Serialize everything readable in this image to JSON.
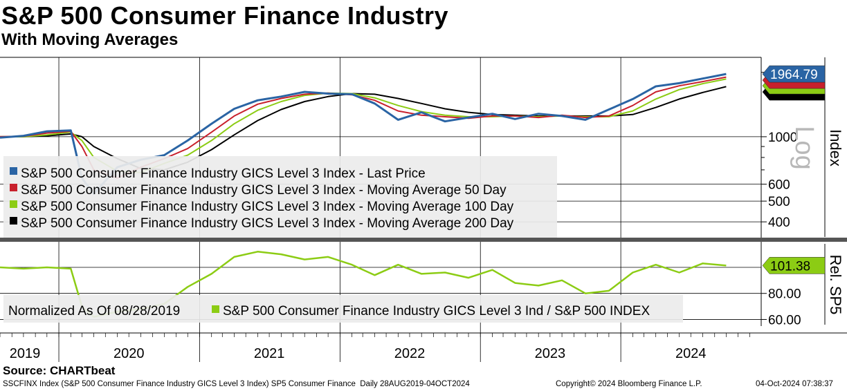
{
  "header": {
    "title": "S&P 500 Consumer Finance Industry",
    "subtitle": "With Moving Averages",
    "source": "Source: CHARTbeat"
  },
  "footer": {
    "left": "SSCFINX Index (S&P 500 Consumer Finance Industry GICS Level 3 Index) SP5 Consumer Finance  Daily 28AUG2019-04OCT2024",
    "center": "Copyright© 2024 Bloomberg Finance L.P.",
    "right": "04-Oct-2024 07:38:37"
  },
  "colors": {
    "last_price": "#2a64a4",
    "ma50": "#c8202c",
    "ma100": "#8ccc14",
    "ma200": "#000000",
    "relative": "#8ccc14",
    "legend_bg": "#ececec",
    "grid": "#000000"
  },
  "chart_data": [
    {
      "type": "line",
      "panel": "price",
      "scale": "log",
      "ylabel": "Index",
      "scale_label": "Log",
      "y_ticks": [
        400,
        500,
        600,
        1000
      ],
      "ylim": [
        340,
        2350
      ],
      "x_labels": [
        "2019",
        "2020",
        "2021",
        "2022",
        "2023",
        "2024"
      ],
      "x": [
        "2019-08",
        "2019-10",
        "2019-12",
        "2020-02",
        "2020-03",
        "2020-04",
        "2020-06",
        "2020-08",
        "2020-10",
        "2020-12",
        "2021-02",
        "2021-04",
        "2021-06",
        "2021-08",
        "2021-10",
        "2021-12",
        "2022-02",
        "2022-04",
        "2022-06",
        "2022-08",
        "2022-10",
        "2022-12",
        "2023-02",
        "2023-04",
        "2023-06",
        "2023-08",
        "2023-10",
        "2023-12",
        "2024-02",
        "2024-04",
        "2024-06",
        "2024-08",
        "2024-10"
      ],
      "series": [
        {
          "name": "S&P 500 Consumer Finance Industry GICS Level 3 Index - Last Price",
          "values": [
            990,
            1010,
            1060,
            1070,
            640,
            540,
            720,
            780,
            820,
            960,
            1150,
            1350,
            1480,
            1540,
            1620,
            1590,
            1580,
            1430,
            1200,
            1300,
            1180,
            1230,
            1280,
            1210,
            1280,
            1250,
            1200,
            1340,
            1500,
            1720,
            1780,
            1870,
            1964.79
          ]
        },
        {
          "name": "S&P 500 Consumer Finance Industry GICS Level 3 Index - Moving Average 50 Day",
          "values": [
            1000,
            1005,
            1040,
            1060,
            900,
            700,
            640,
            720,
            790,
            880,
            1050,
            1250,
            1420,
            1510,
            1580,
            1600,
            1570,
            1480,
            1320,
            1260,
            1240,
            1220,
            1250,
            1250,
            1230,
            1260,
            1230,
            1250,
            1400,
            1620,
            1730,
            1810,
            1900
          ]
        },
        {
          "name": "S&P 500 Consumer Finance Industry GICS Level 3 Index - Moving Average 100 Day",
          "values": [
            1000,
            1000,
            1020,
            1050,
            960,
            800,
            690,
            680,
            750,
            820,
            960,
            1150,
            1330,
            1460,
            1560,
            1600,
            1590,
            1520,
            1400,
            1310,
            1260,
            1240,
            1240,
            1250,
            1240,
            1250,
            1240,
            1240,
            1320,
            1500,
            1660,
            1770,
            1860
          ]
        },
        {
          "name": "S&P 500 Consumer Finance Industry GICS Level 3 Index - Moving Average 200 Day",
          "values": [
            1000,
            1000,
            1010,
            1030,
            1000,
            900,
            790,
            710,
            700,
            760,
            870,
            1020,
            1190,
            1340,
            1460,
            1540,
            1590,
            1580,
            1510,
            1430,
            1350,
            1300,
            1270,
            1260,
            1250,
            1250,
            1250,
            1250,
            1270,
            1370,
            1500,
            1610,
            1715.05
          ]
        }
      ],
      "last_value_label": "1964.79"
    },
    {
      "type": "line",
      "panel": "relative",
      "ylabel": "Rel. SP5",
      "y_ticks": [
        60,
        80
      ],
      "y_tick_labels": [
        "60.00",
        "80.00"
      ],
      "ylim": [
        56,
        118
      ],
      "legend_left": "Normalized As Of 08/28/2019",
      "x": [
        "2019-08",
        "2019-10",
        "2019-12",
        "2020-02",
        "2020-03",
        "2020-04",
        "2020-06",
        "2020-08",
        "2020-10",
        "2020-12",
        "2021-02",
        "2021-04",
        "2021-06",
        "2021-08",
        "2021-10",
        "2021-12",
        "2022-02",
        "2022-04",
        "2022-06",
        "2022-08",
        "2022-10",
        "2022-12",
        "2023-02",
        "2023-04",
        "2023-06",
        "2023-08",
        "2023-10",
        "2023-12",
        "2024-02",
        "2024-04",
        "2024-06",
        "2024-08",
        "2024-10"
      ],
      "series": [
        {
          "name": "S&P 500 Consumer Finance Industry GICS Level 3 Ind / S&P 500 INDEX",
          "values": [
            100,
            99,
            100,
            99,
            70,
            62,
            66,
            68,
            72,
            85,
            95,
            108,
            112,
            110,
            106,
            108,
            102,
            94,
            102,
            95,
            96,
            92,
            98,
            88,
            86,
            90,
            80,
            82,
            96,
            102,
            96,
            103,
            101.38
          ]
        }
      ],
      "last_value_label": "101.38"
    }
  ]
}
